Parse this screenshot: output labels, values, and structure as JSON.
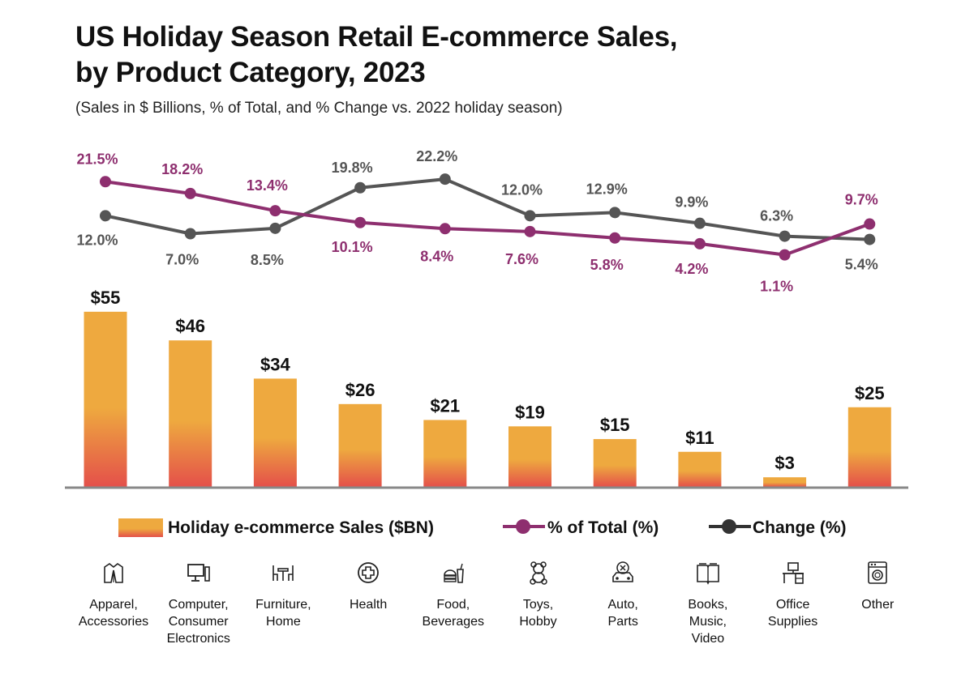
{
  "title_line1": "US Holiday Season Retail E-commerce Sales,",
  "title_line2": "by Product Category, 2023",
  "subtitle": "(Sales in $ Billions, % of Total, and % Change vs. 2022 holiday season)",
  "colors": {
    "bar_top": "#EEA93F",
    "bar_bottom": "#E4504A",
    "share_line": "#8E2F6F",
    "change_line": "#555555",
    "axis": "#888888"
  },
  "legend": {
    "sales": "Holiday e-commerce Sales ($BN)",
    "share": "% of Total (%)",
    "change": "Change (%)"
  },
  "categories": [
    {
      "label": "Apparel,\nAccessories",
      "icon": "jacket-icon"
    },
    {
      "label": "Computer,\nConsumer\nElectronics",
      "icon": "computer-icon"
    },
    {
      "label": "Furniture,\nHome",
      "icon": "furniture-icon"
    },
    {
      "label": "Health",
      "icon": "health-cross-icon"
    },
    {
      "label": "Food,\nBeverages",
      "icon": "food-icon"
    },
    {
      "label": "Toys,\nHobby",
      "icon": "teddy-bear-icon"
    },
    {
      "label": "Auto,\nParts",
      "icon": "car-icon"
    },
    {
      "label": "Books,\nMusic,\nVideo",
      "icon": "book-icon"
    },
    {
      "label": "Office\nSupplies",
      "icon": "desk-icon"
    },
    {
      "label": "Other",
      "icon": "washing-machine-icon"
    }
  ],
  "chart_data": {
    "type": "bar",
    "title": "US Holiday Season Retail E-commerce Sales, by Product Category, 2023",
    "subtitle": "(Sales in $ Billions, % of Total, and % Change vs. 2022 holiday season)",
    "categories": [
      "Apparel, Accessories",
      "Computer, Consumer Electronics",
      "Furniture, Home",
      "Health",
      "Food, Beverages",
      "Toys, Hobby",
      "Auto, Parts",
      "Books, Music, Video",
      "Office Supplies",
      "Other"
    ],
    "series": [
      {
        "name": "Holiday e-commerce Sales ($BN)",
        "type": "bar",
        "values": [
          55,
          46,
          34,
          26,
          21,
          19,
          15,
          11,
          3,
          25
        ],
        "labels": [
          "$55",
          "$46",
          "$34",
          "$26",
          "$21",
          "$19",
          "$15",
          "$11",
          "$3",
          "$25"
        ]
      },
      {
        "name": "% of Total (%)",
        "type": "line",
        "values": [
          21.5,
          18.2,
          13.4,
          10.1,
          8.4,
          7.6,
          5.8,
          4.2,
          1.1,
          9.7
        ],
        "labels": [
          "21.5%",
          "18.2%",
          "13.4%",
          "10.1%",
          "8.4%",
          "7.6%",
          "5.8%",
          "4.2%",
          "1.1%",
          "9.7%"
        ]
      },
      {
        "name": "Change (%)",
        "type": "line",
        "values": [
          12.0,
          7.0,
          8.5,
          19.8,
          22.2,
          12.0,
          12.9,
          9.9,
          6.3,
          5.4
        ],
        "labels": [
          "12.0%",
          "7.0%",
          "8.5%",
          "19.8%",
          "22.2%",
          "12.0%",
          "12.9%",
          "9.9%",
          "6.3%",
          "5.4%"
        ]
      }
    ],
    "grid": false,
    "legend_position": "bottom"
  }
}
